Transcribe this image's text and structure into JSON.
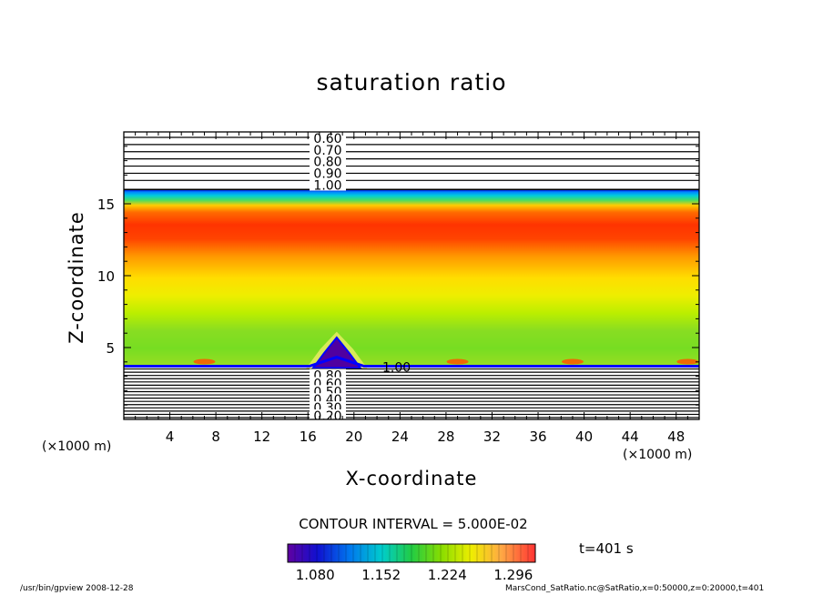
{
  "title": "saturation ratio",
  "footer": {
    "left": "/usr/bin/gpview  2008-12-28",
    "right": "MarsCond_SatRatio.nc@SatRatio,x=0:50000,z=0:20000,t=401"
  },
  "time_label": "t=401 s",
  "contour_interval": "CONTOUR INTERVAL = 5.000E-02",
  "colors": {
    "upper_band_edge": "#0000e0",
    "low": "#5a00b0",
    "mid": "#66cc00",
    "high": "#ff2200"
  },
  "chart_data": {
    "type": "heatmap",
    "title": "saturation ratio",
    "xlabel": "X-coordinate",
    "ylabel": "Z-coordinate",
    "x_unit_left": "(×1000 m)",
    "x_unit_right": "(×1000 m)",
    "xlim": [
      0,
      50
    ],
    "ylim": [
      0,
      20
    ],
    "x_ticks": [
      4,
      8,
      12,
      16,
      20,
      24,
      28,
      32,
      36,
      40,
      44,
      48
    ],
    "x_tick_labels": [
      "4",
      "8",
      "12",
      "16",
      "20",
      "24",
      "28",
      "32",
      "36",
      "40",
      "44",
      "48"
    ],
    "y_ticks": [
      5,
      10,
      15
    ],
    "y_tick_labels": [
      "5",
      "10",
      "15"
    ],
    "upper_contour_labels": [
      "0.60",
      "0.70",
      "0.80",
      "0.90",
      "1.00"
    ],
    "lower_contour_labels": [
      "0.80",
      "0.60",
      "0.50",
      "0.40",
      "0.30",
      "0.20"
    ],
    "lower_contour_label_1": "1.00",
    "saturated_layer_z": [
      3.7,
      16.0
    ],
    "colorbar": {
      "labels": [
        "1.080",
        "1.152",
        "1.224",
        "1.296"
      ],
      "range": [
        1.05,
        1.32
      ]
    }
  }
}
